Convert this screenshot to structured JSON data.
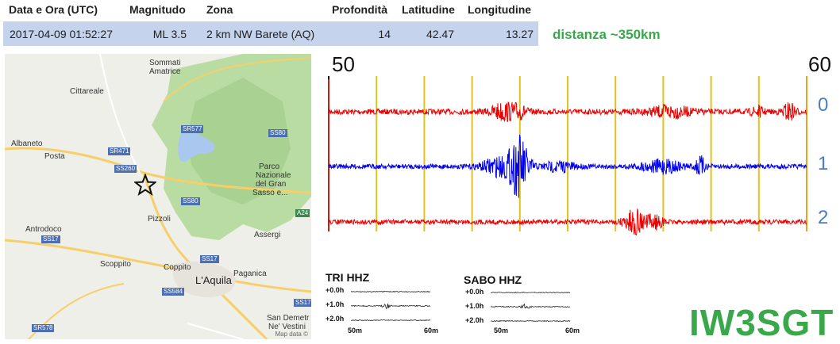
{
  "event_table": {
    "headers": [
      "Data e Ora (UTC)",
      "Magnitudo",
      "Zona",
      "Profondità",
      "Latitudine",
      "Longitudine"
    ],
    "row": {
      "datetime": "2017-04-09 01:52:27",
      "magnitude": "ML 3.5",
      "zone": "2 km NW Barete (AQ)",
      "depth": "14",
      "latitude": "42.47",
      "longitude": "13.27"
    }
  },
  "distance": "distanza ~350km",
  "map": {
    "places": [
      "Sommati",
      "Amatrice",
      "Cittareale",
      "Albaneto",
      "Posta",
      "Parco",
      "Nazionale",
      "del Gran",
      "Sasso e...",
      "Pizzoli",
      "Antrodoco",
      "Assergi",
      "Scoppito",
      "Coppito",
      "Paganica",
      "L'Aquila",
      "San Demetr",
      "Ne' Vestini"
    ],
    "roads": [
      "SR577",
      "SS80",
      "SR471",
      "SS260",
      "SS80",
      "A24",
      "SS17",
      "SS17",
      "SS584",
      "SS17",
      "SR578"
    ],
    "credit": "Map data ©",
    "epicenter_icon": "star-icon"
  },
  "seismogram": {
    "x_start": "50",
    "x_end": "60",
    "trace_labels": [
      "0",
      "1",
      "2"
    ],
    "colors": {
      "trace_0": "#ee0000",
      "trace_1": "#0000ee",
      "trace_2": "#ee0000",
      "minute_line": "#e2c21d",
      "bound_line": "#c02010"
    }
  },
  "stations": [
    {
      "title": "TRI HHZ",
      "rows": [
        "+0.0h",
        "+1.0h",
        "+2.0h"
      ],
      "x_start": "50m",
      "x_end": "60m"
    },
    {
      "title": "SABO HHZ",
      "rows": [
        "+0.0h",
        "+1.0h",
        "+2.0h"
      ],
      "x_start": "50m",
      "x_end": "60m"
    }
  ],
  "callsign": "IW3SGT"
}
